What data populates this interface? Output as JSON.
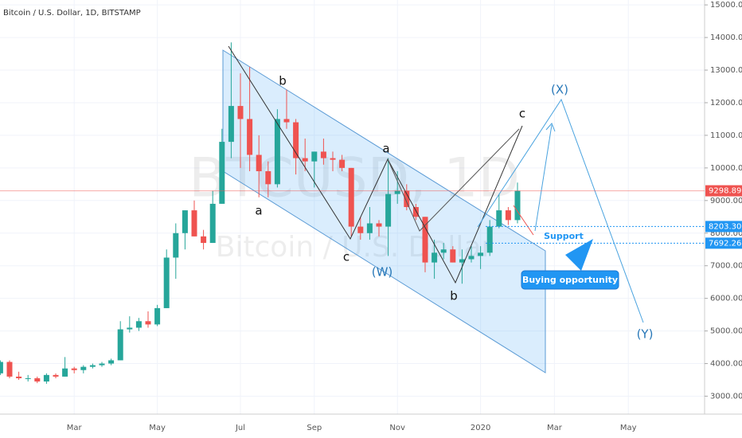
{
  "chart_data": {
    "type": "candlestick",
    "title": "Bitcoin / U.S. Dollar, 1D, BITSTAMP",
    "watermark": [
      "BTCUSD, 1D",
      "Bitcoin / U.S. Dollar"
    ],
    "categories": [
      null,
      null,
      null,
      null,
      null,
      null,
      null,
      null,
      "Mar",
      null,
      null,
      null,
      null,
      null,
      null,
      null,
      null,
      "May",
      null,
      null,
      null,
      null,
      null,
      null,
      null,
      null,
      "Jul",
      null,
      null,
      null,
      null,
      null,
      null,
      null,
      "Sep",
      null,
      null,
      null,
      null,
      null,
      null,
      null,
      null,
      "Nov",
      null,
      null,
      null,
      null,
      null,
      null,
      null,
      null,
      "2020",
      null,
      null,
      null,
      null,
      null,
      null,
      null,
      "Mar",
      null,
      null,
      null,
      null,
      null,
      null,
      null,
      "May",
      null,
      null,
      null,
      null,
      null,
      null,
      null,
      null
    ],
    "open": [
      3700,
      4050,
      3600,
      3550,
      3550,
      3450,
      3650,
      3600,
      3850,
      3800,
      3900,
      3950,
      4000,
      4100,
      5050,
      5100,
      5300,
      5200,
      5700,
      7250,
      8000,
      8700,
      7900,
      7700,
      8900,
      10800,
      11900,
      11500,
      10400,
      9900,
      9500,
      11500,
      11400,
      10300,
      10200,
      10500,
      10300,
      10250,
      10000,
      8200,
      8000,
      8300,
      8200,
      9200,
      9300,
      8800,
      8500,
      7100,
      7400,
      7500,
      7100,
      7200,
      7300,
      7400,
      8200,
      8700,
      8400,
      null,
      null,
      null,
      null,
      null,
      null,
      null,
      null,
      null,
      null,
      null,
      null,
      null,
      null,
      null,
      null,
      null,
      null,
      null,
      null
    ],
    "high": [
      4100,
      4100,
      3750,
      3650,
      3600,
      3700,
      3700,
      4200,
      3900,
      3950,
      4000,
      4050,
      4150,
      5300,
      5450,
      5400,
      5600,
      5800,
      7500,
      8300,
      8700,
      9000,
      8100,
      9300,
      11200,
      13850,
      12900,
      13100,
      11000,
      10200,
      11800,
      12400,
      11500,
      10900,
      10500,
      10900,
      10500,
      10400,
      10000,
      8500,
      8800,
      8400,
      10300,
      9900,
      9500,
      8900,
      8500,
      7800,
      7700,
      7600,
      7500,
      7600,
      7600,
      8400,
      9200,
      8800,
      9550,
      null,
      null,
      null,
      null,
      null,
      null,
      null,
      null,
      null,
      null,
      null,
      null,
      null,
      null,
      null,
      null,
      null,
      null,
      null,
      null
    ],
    "low": [
      3650,
      3550,
      3500,
      3450,
      3400,
      3380,
      3550,
      3600,
      3700,
      3700,
      3850,
      3900,
      3950,
      4100,
      4950,
      5000,
      5100,
      5150,
      5700,
      6600,
      7500,
      7900,
      7500,
      7700,
      8900,
      10300,
      10000,
      9900,
      9100,
      9100,
      9400,
      11200,
      9800,
      9900,
      9400,
      10100,
      9900,
      9900,
      7900,
      7800,
      7800,
      7900,
      7300,
      8900,
      8700,
      8400,
      6800,
      6600,
      7200,
      7100,
      6450,
      7100,
      6900,
      7300,
      8150,
      8250,
      8300,
      null,
      null,
      null,
      null,
      null,
      null,
      null,
      null,
      null,
      null,
      null,
      null,
      null,
      null,
      null,
      null,
      null,
      null,
      null,
      null
    ],
    "close": [
      4050,
      3600,
      3550,
      3550,
      3450,
      3650,
      3600,
      3850,
      3800,
      3900,
      3950,
      4000,
      4100,
      5050,
      5100,
      5300,
      5200,
      5700,
      7250,
      8000,
      8700,
      7900,
      7700,
      8900,
      10800,
      11900,
      11500,
      10400,
      9900,
      9500,
      11500,
      11400,
      10300,
      10200,
      10500,
      10300,
      10250,
      10000,
      8200,
      8000,
      8300,
      8200,
      9200,
      9300,
      8800,
      8500,
      7100,
      7400,
      7500,
      7100,
      7200,
      7300,
      7400,
      8200,
      8700,
      8400,
      9300,
      null,
      null,
      null,
      null,
      null,
      null,
      null,
      null,
      null,
      null,
      null,
      null,
      null,
      null,
      null,
      null,
      null,
      null,
      null,
      null
    ],
    "up_color": "#26a69a",
    "down_color": "#ef5350",
    "ylim": [
      2450,
      15150
    ],
    "yticks": [
      {
        "value": 3000,
        "label": "3000.00"
      },
      {
        "value": 4000,
        "label": "4000.00"
      },
      {
        "value": 5000,
        "label": "5000.00"
      },
      {
        "value": 6000,
        "label": "6000.00"
      },
      {
        "value": 7000,
        "label": "7000.00"
      },
      {
        "value": 8000,
        "label": "8000.00"
      },
      {
        "value": 9000,
        "label": "9000.00"
      },
      {
        "value": 10000,
        "label": "10000.00"
      },
      {
        "value": 11000,
        "label": "11000.00"
      },
      {
        "value": 12000,
        "label": "12000.00"
      },
      {
        "value": 13000,
        "label": "13000.00"
      },
      {
        "value": 14000,
        "label": "14000.00"
      },
      {
        "value": 15000,
        "label": "15000.00"
      }
    ],
    "grid": true,
    "price_lines": [
      {
        "value": 9298.89,
        "label": "9298.89",
        "color": "#ef5350"
      },
      {
        "value": 8203.3,
        "label": "8203.30",
        "color": "#2196f3"
      },
      {
        "value": 7692.26,
        "label": "7692.26",
        "color": "#2196f3"
      }
    ],
    "wave_labels": [
      "b",
      "a",
      "c",
      "(W)",
      "a",
      "b",
      "c",
      "(X)",
      "(Y)"
    ],
    "support_label": "Support",
    "callout": "Buying opportunity"
  }
}
